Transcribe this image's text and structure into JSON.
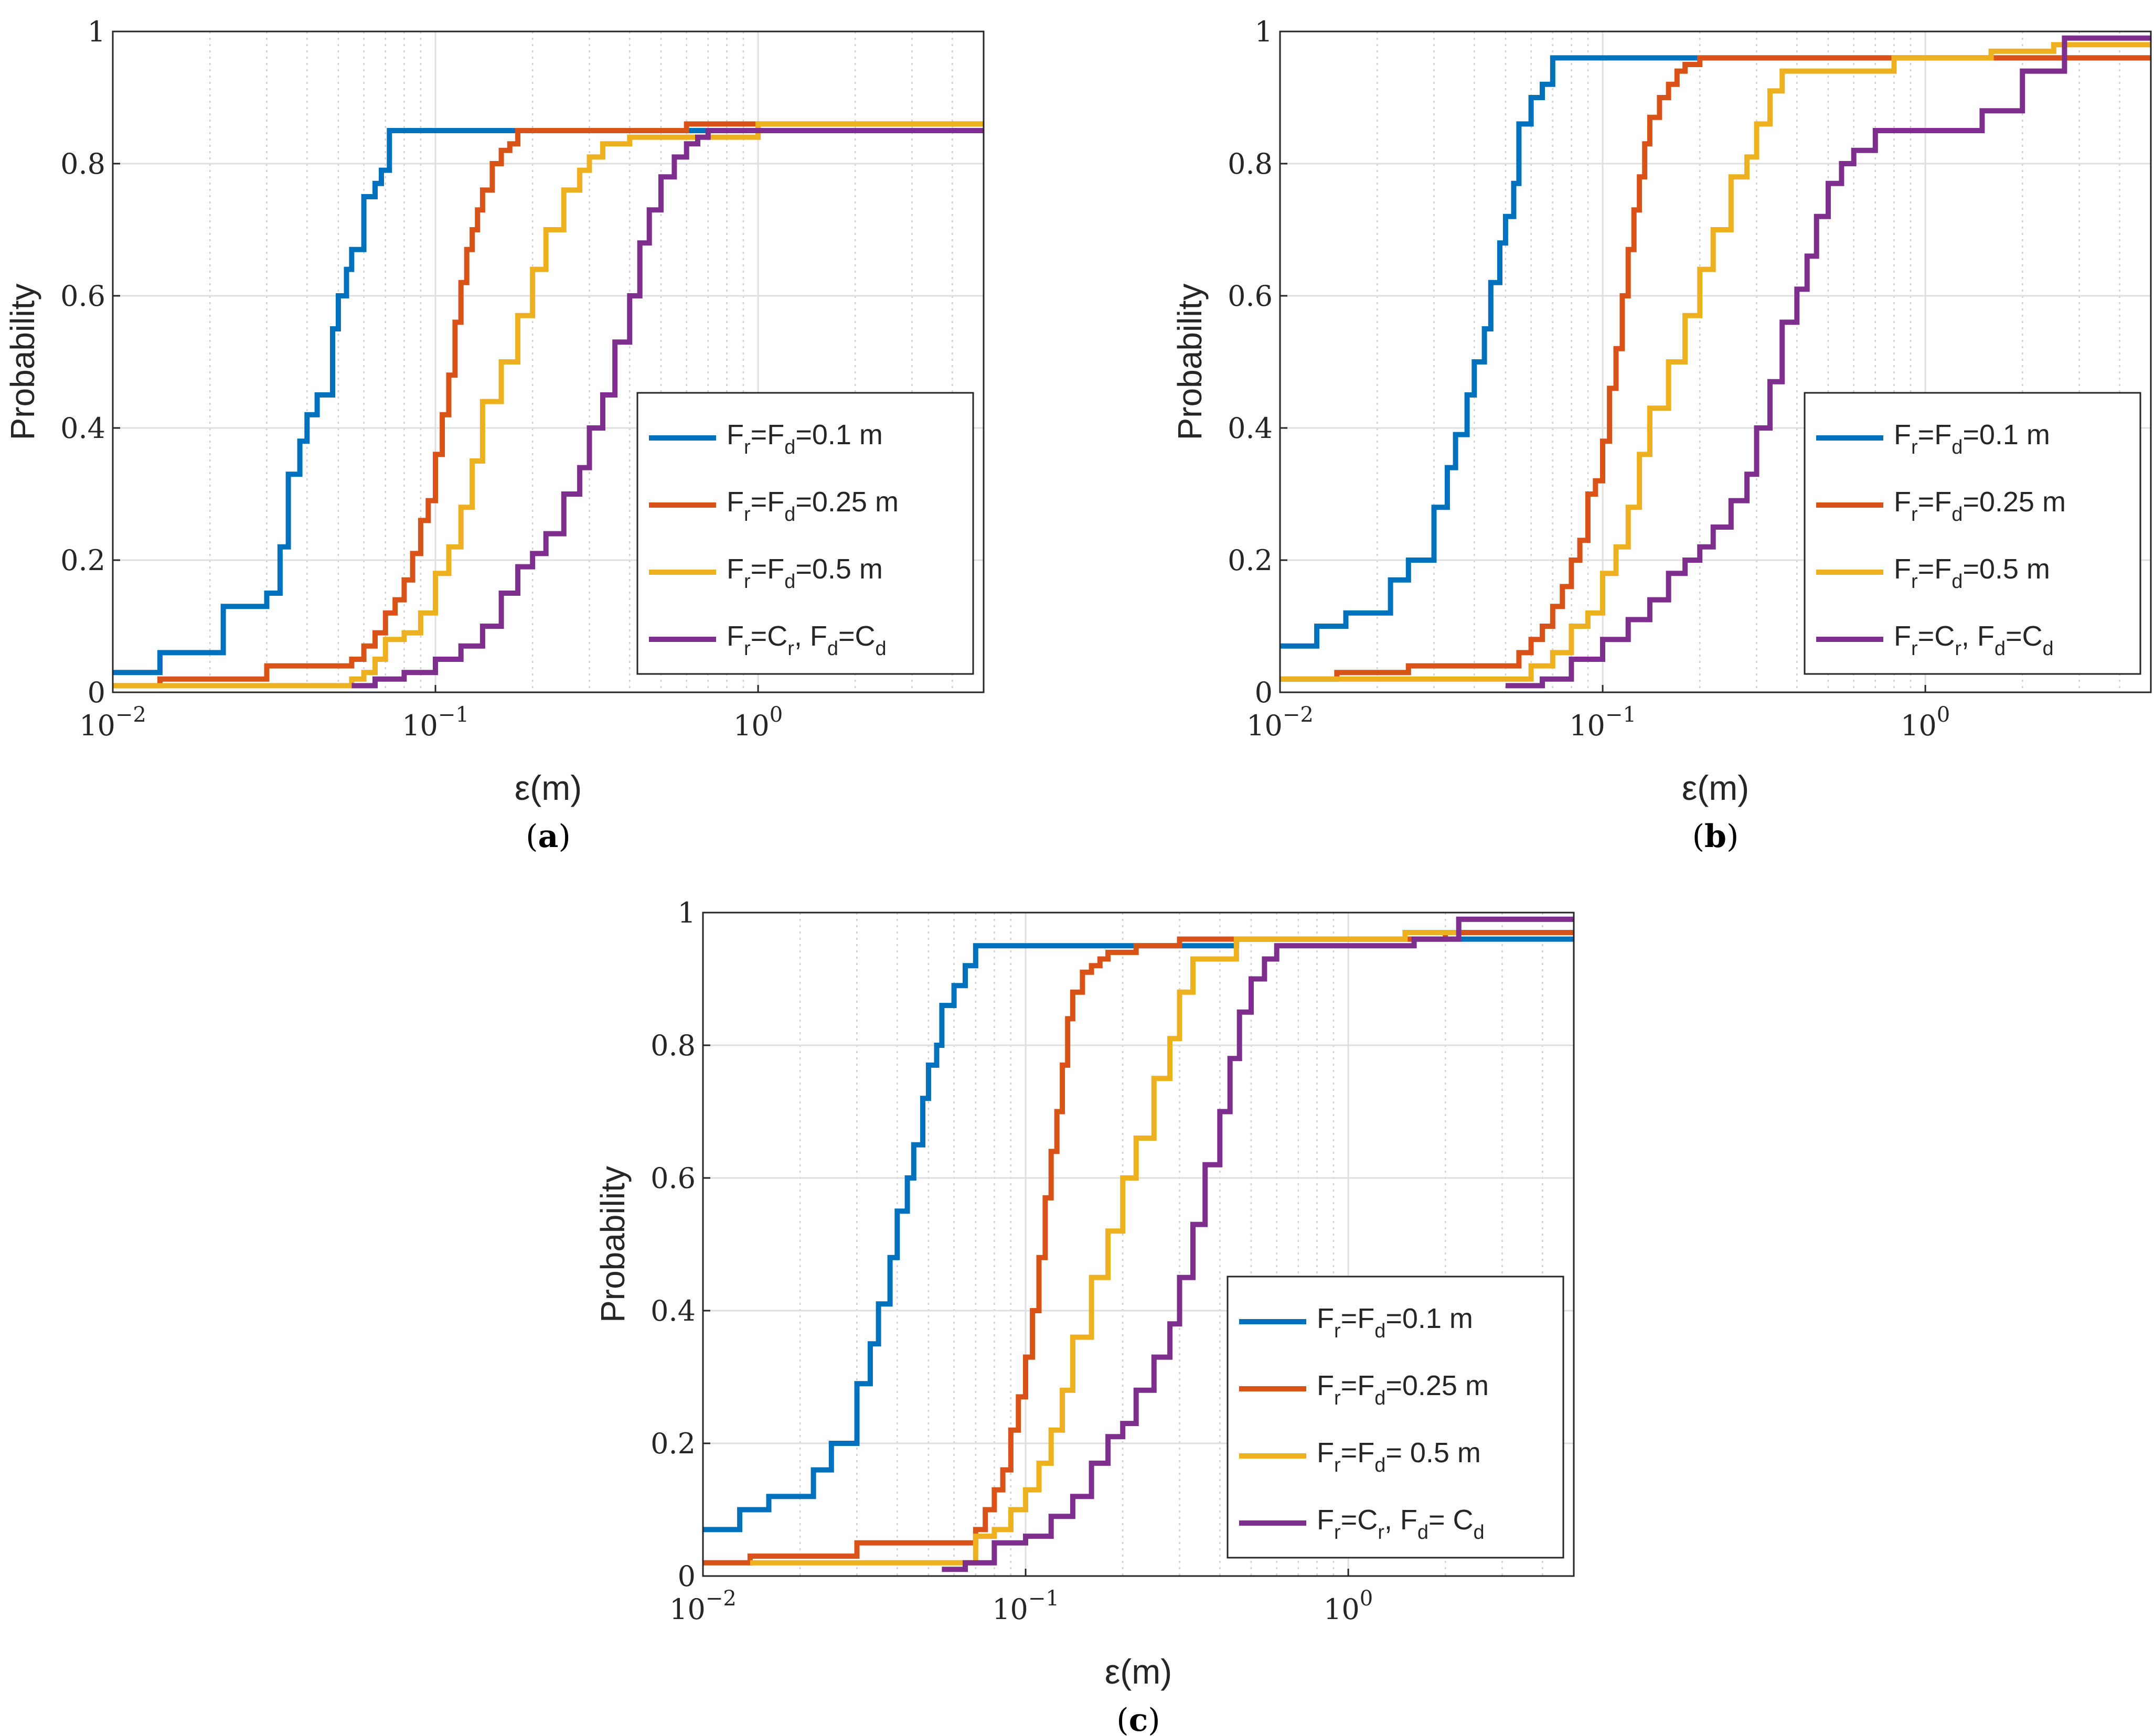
{
  "figure": {
    "colors": {
      "series": [
        "#0072BD",
        "#D95319",
        "#EDB120",
        "#7E2F8E"
      ],
      "grid": "#DFDFDF",
      "axis": "#262626"
    },
    "panels": [
      {
        "caption_letter": "a",
        "ylabel": "Probability",
        "xlabel": "ε(m)",
        "legend": [
          {
            "p1": "F",
            "s1": "r",
            "p2": "=F",
            "s2": "d",
            "p3": "=0.1 m"
          },
          {
            "p1": "F",
            "s1": "r",
            "p2": "=F",
            "s2": "d",
            "p3": "=0.25 m"
          },
          {
            "p1": "F",
            "s1": "r",
            "p2": "=F",
            "s2": "d",
            "p3": "=0.5 m"
          },
          {
            "p1": "F",
            "s1": "r",
            "p2": "=C",
            "s2": "r",
            "p3": ", F",
            "s3": "d",
            "p4": "=C",
            "s4": "d"
          }
        ]
      },
      {
        "caption_letter": "b",
        "ylabel": "Probability",
        "xlabel": "ε(m)",
        "legend": [
          {
            "p1": "F",
            "s1": "r",
            "p2": "=F",
            "s2": "d",
            "p3": "=0.1 m"
          },
          {
            "p1": "F",
            "s1": "r",
            "p2": "=F",
            "s2": "d",
            "p3": "=0.25 m"
          },
          {
            "p1": "F",
            "s1": "r",
            "p2": "=F",
            "s2": "d",
            "p3": "=0.5 m"
          },
          {
            "p1": "F",
            "s1": "r",
            "p2": "=C",
            "s2": "r",
            "p3": ", F",
            "s3": "d",
            "p4": "=C",
            "s4": "d"
          }
        ]
      },
      {
        "caption_letter": "c",
        "ylabel": "Probability",
        "xlabel": "ε(m)",
        "legend": [
          {
            "p1": "F",
            "s1": "r",
            "p2": "=F",
            "s2": "d",
            "p3": "=0.1 m"
          },
          {
            "p1": "F",
            "s1": "r",
            "p2": "=F",
            "s2": "d",
            "p3": "=0.25 m"
          },
          {
            "p1": "F",
            "s1": "r",
            "p2": "=F",
            "s2": "d",
            "p3": "= 0.5 m"
          },
          {
            "p1": "F",
            "s1": "r",
            "p2": "=C",
            "s2": "r",
            "p3": ", F",
            "s3": "d",
            "p4": "= C",
            "s4": "d"
          }
        ]
      }
    ]
  },
  "chart_data": [
    {
      "type": "line",
      "subtype": "step-cdf",
      "panel": "a",
      "xscale": "log",
      "xlim": [
        0.01,
        5
      ],
      "ylim": [
        0,
        1
      ],
      "grid": true,
      "legend_position": "lower-right",
      "xticks": [
        {
          "base": "10",
          "exp": "−2"
        },
        {
          "base": "10",
          "exp": "−1"
        },
        {
          "base": "10",
          "exp": "0"
        }
      ],
      "yticks": [
        "0",
        "0.2",
        "0.4",
        "0.6",
        "0.8",
        "1"
      ],
      "xlabel": "ε(m)",
      "ylabel": "Probability",
      "series": [
        {
          "name": "F_r=F_d=0.1 m",
          "x": [
            0.01,
            0.014,
            0.022,
            0.03,
            0.033,
            0.035,
            0.038,
            0.04,
            0.043,
            0.048,
            0.05,
            0.053,
            0.055,
            0.06,
            0.065,
            0.068,
            0.072,
            0.2
          ],
          "y": [
            0.03,
            0.06,
            0.13,
            0.15,
            0.22,
            0.33,
            0.38,
            0.42,
            0.45,
            0.55,
            0.6,
            0.64,
            0.67,
            0.75,
            0.77,
            0.79,
            0.85,
            0.85
          ]
        },
        {
          "name": "F_r=F_d=0.25 m",
          "x": [
            0.01,
            0.014,
            0.03,
            0.055,
            0.06,
            0.065,
            0.07,
            0.075,
            0.08,
            0.085,
            0.09,
            0.095,
            0.1,
            0.105,
            0.11,
            0.115,
            0.12,
            0.125,
            0.13,
            0.135,
            0.14,
            0.15,
            0.16,
            0.17,
            0.18,
            0.2,
            0.6,
            0.8,
            1.5
          ],
          "y": [
            0.01,
            0.02,
            0.04,
            0.05,
            0.07,
            0.09,
            0.12,
            0.14,
            0.17,
            0.21,
            0.26,
            0.29,
            0.36,
            0.42,
            0.48,
            0.56,
            0.62,
            0.67,
            0.7,
            0.73,
            0.76,
            0.8,
            0.82,
            0.83,
            0.85,
            0.85,
            0.86,
            0.86,
            0.86
          ]
        },
        {
          "name": "F_r=F_d=0.5 m",
          "x": [
            0.01,
            0.055,
            0.06,
            0.065,
            0.07,
            0.08,
            0.09,
            0.1,
            0.11,
            0.12,
            0.13,
            0.14,
            0.16,
            0.18,
            0.2,
            0.22,
            0.25,
            0.28,
            0.3,
            0.33,
            0.36,
            0.4,
            1.0,
            1.5
          ],
          "y": [
            0.01,
            0.02,
            0.03,
            0.05,
            0.08,
            0.09,
            0.12,
            0.18,
            0.22,
            0.28,
            0.35,
            0.44,
            0.5,
            0.57,
            0.64,
            0.7,
            0.76,
            0.79,
            0.81,
            0.83,
            0.83,
            0.84,
            0.86,
            0.86
          ]
        },
        {
          "name": "F_r=C_r, F_d=C_d",
          "x": [
            0.055,
            0.065,
            0.08,
            0.1,
            0.12,
            0.14,
            0.16,
            0.18,
            0.2,
            0.22,
            0.25,
            0.28,
            0.3,
            0.33,
            0.36,
            0.4,
            0.43,
            0.46,
            0.5,
            0.55,
            0.6,
            0.65,
            0.7,
            0.8,
            1.0,
            1.5
          ],
          "y": [
            0.01,
            0.02,
            0.03,
            0.05,
            0.07,
            0.1,
            0.15,
            0.19,
            0.21,
            0.24,
            0.3,
            0.34,
            0.4,
            0.45,
            0.53,
            0.6,
            0.68,
            0.73,
            0.78,
            0.81,
            0.83,
            0.84,
            0.85,
            0.85,
            0.85,
            0.85
          ]
        }
      ]
    },
    {
      "type": "line",
      "subtype": "step-cdf",
      "panel": "b",
      "xscale": "log",
      "xlim": [
        0.01,
        5
      ],
      "ylim": [
        0,
        1
      ],
      "grid": true,
      "legend_position": "lower-right",
      "xticks": [
        {
          "base": "10",
          "exp": "−2"
        },
        {
          "base": "10",
          "exp": "−1"
        },
        {
          "base": "10",
          "exp": "0"
        }
      ],
      "yticks": [
        "0",
        "0.2",
        "0.4",
        "0.6",
        "0.8",
        "1"
      ],
      "xlabel": "ε(m)",
      "ylabel": "Probability",
      "series": [
        {
          "name": "F_r=F_d=0.1 m",
          "x": [
            0.01,
            0.013,
            0.016,
            0.022,
            0.025,
            0.03,
            0.033,
            0.035,
            0.038,
            0.04,
            0.043,
            0.045,
            0.048,
            0.05,
            0.053,
            0.055,
            0.06,
            0.065,
            0.07,
            0.072,
            0.2
          ],
          "y": [
            0.07,
            0.1,
            0.12,
            0.17,
            0.2,
            0.28,
            0.34,
            0.39,
            0.45,
            0.5,
            0.55,
            0.62,
            0.68,
            0.72,
            0.77,
            0.86,
            0.9,
            0.92,
            0.96,
            0.96,
            0.96
          ]
        },
        {
          "name": "F_r=F_d=0.25 m",
          "x": [
            0.01,
            0.015,
            0.025,
            0.055,
            0.06,
            0.065,
            0.07,
            0.075,
            0.08,
            0.085,
            0.09,
            0.095,
            0.1,
            0.105,
            0.11,
            0.115,
            0.12,
            0.125,
            0.13,
            0.135,
            0.14,
            0.15,
            0.16,
            0.17,
            0.18,
            0.2,
            0.8
          ],
          "y": [
            0.02,
            0.03,
            0.04,
            0.06,
            0.08,
            0.1,
            0.13,
            0.16,
            0.2,
            0.23,
            0.3,
            0.32,
            0.38,
            0.46,
            0.52,
            0.6,
            0.67,
            0.73,
            0.78,
            0.83,
            0.87,
            0.9,
            0.92,
            0.94,
            0.95,
            0.96,
            0.96
          ]
        },
        {
          "name": "F_r=F_d=0.5 m",
          "x": [
            0.01,
            0.06,
            0.07,
            0.08,
            0.09,
            0.1,
            0.11,
            0.12,
            0.13,
            0.14,
            0.16,
            0.18,
            0.2,
            0.22,
            0.25,
            0.28,
            0.3,
            0.33,
            0.36,
            0.4,
            0.8,
            1.6,
            2.5
          ],
          "y": [
            0.02,
            0.04,
            0.06,
            0.1,
            0.12,
            0.18,
            0.22,
            0.28,
            0.36,
            0.43,
            0.5,
            0.57,
            0.64,
            0.7,
            0.78,
            0.81,
            0.86,
            0.91,
            0.94,
            0.94,
            0.96,
            0.97,
            0.98
          ]
        },
        {
          "name": "F_r=C_r, F_d=C_d",
          "x": [
            0.05,
            0.065,
            0.08,
            0.1,
            0.12,
            0.14,
            0.16,
            0.18,
            0.2,
            0.22,
            0.25,
            0.28,
            0.3,
            0.33,
            0.36,
            0.4,
            0.43,
            0.46,
            0.5,
            0.55,
            0.6,
            0.7,
            1.0,
            1.5,
            2.0,
            2.7
          ],
          "y": [
            0.01,
            0.02,
            0.05,
            0.08,
            0.11,
            0.14,
            0.18,
            0.2,
            0.22,
            0.25,
            0.29,
            0.33,
            0.4,
            0.47,
            0.56,
            0.61,
            0.66,
            0.72,
            0.77,
            0.8,
            0.82,
            0.85,
            0.85,
            0.88,
            0.94,
            0.99
          ]
        }
      ]
    },
    {
      "type": "line",
      "subtype": "step-cdf",
      "panel": "c",
      "xscale": "log",
      "xlim": [
        0.01,
        5
      ],
      "ylim": [
        0,
        1
      ],
      "grid": true,
      "legend_position": "lower-right",
      "xticks": [
        {
          "base": "10",
          "exp": "−2"
        },
        {
          "base": "10",
          "exp": "−1"
        },
        {
          "base": "10",
          "exp": "0"
        }
      ],
      "yticks": [
        "0",
        "0.2",
        "0.4",
        "0.6",
        "0.8",
        "1"
      ],
      "xlabel": "ε(m)",
      "ylabel": "Probability",
      "series": [
        {
          "name": "F_r=F_d=0.1 m",
          "x": [
            0.01,
            0.013,
            0.016,
            0.022,
            0.025,
            0.03,
            0.033,
            0.035,
            0.038,
            0.04,
            0.043,
            0.045,
            0.048,
            0.05,
            0.053,
            0.055,
            0.06,
            0.065,
            0.07,
            0.072,
            0.45
          ],
          "y": [
            0.07,
            0.1,
            0.12,
            0.16,
            0.2,
            0.29,
            0.35,
            0.41,
            0.48,
            0.55,
            0.6,
            0.65,
            0.72,
            0.77,
            0.8,
            0.86,
            0.89,
            0.92,
            0.95,
            0.95,
            0.96
          ]
        },
        {
          "name": "F_r=F_d=0.25 m",
          "x": [
            0.01,
            0.014,
            0.03,
            0.07,
            0.075,
            0.08,
            0.085,
            0.09,
            0.095,
            0.1,
            0.105,
            0.11,
            0.115,
            0.12,
            0.125,
            0.13,
            0.135,
            0.14,
            0.15,
            0.16,
            0.17,
            0.18,
            0.22,
            0.3,
            2.0
          ],
          "y": [
            0.02,
            0.03,
            0.05,
            0.07,
            0.1,
            0.13,
            0.16,
            0.22,
            0.27,
            0.33,
            0.4,
            0.48,
            0.57,
            0.64,
            0.7,
            0.77,
            0.84,
            0.88,
            0.91,
            0.92,
            0.93,
            0.94,
            0.95,
            0.96,
            0.97
          ]
        },
        {
          "name": "F_r=F_d= 0.5 m",
          "x": [
            0.014,
            0.07,
            0.08,
            0.09,
            0.1,
            0.11,
            0.12,
            0.13,
            0.14,
            0.16,
            0.18,
            0.2,
            0.22,
            0.25,
            0.28,
            0.3,
            0.33,
            0.45,
            1.5,
            2.2
          ],
          "y": [
            0.02,
            0.06,
            0.07,
            0.1,
            0.13,
            0.17,
            0.22,
            0.28,
            0.36,
            0.45,
            0.52,
            0.6,
            0.66,
            0.75,
            0.81,
            0.88,
            0.93,
            0.96,
            0.97,
            0.99
          ]
        },
        {
          "name": "F_r=C_r, F_d= C_d",
          "x": [
            0.055,
            0.065,
            0.08,
            0.1,
            0.12,
            0.14,
            0.16,
            0.18,
            0.2,
            0.22,
            0.25,
            0.28,
            0.3,
            0.33,
            0.36,
            0.4,
            0.43,
            0.46,
            0.5,
            0.55,
            0.6,
            1.6,
            2.2
          ],
          "y": [
            0.01,
            0.02,
            0.05,
            0.06,
            0.09,
            0.12,
            0.17,
            0.21,
            0.23,
            0.28,
            0.33,
            0.38,
            0.45,
            0.53,
            0.62,
            0.7,
            0.78,
            0.85,
            0.9,
            0.93,
            0.95,
            0.96,
            0.99
          ]
        }
      ]
    }
  ]
}
